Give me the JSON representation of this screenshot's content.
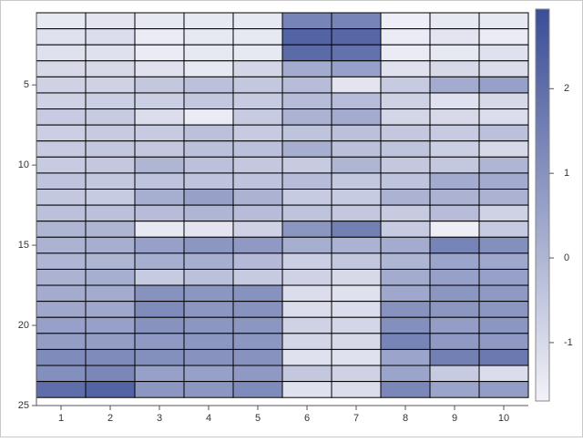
{
  "chart_data": {
    "type": "heatmap",
    "x": [
      1,
      2,
      3,
      4,
      5,
      6,
      7,
      8,
      9,
      10
    ],
    "y": [
      1,
      2,
      3,
      4,
      5,
      6,
      7,
      8,
      9,
      10,
      11,
      12,
      13,
      14,
      15,
      16,
      17,
      18,
      19,
      20,
      21,
      22,
      23,
      24
    ],
    "values": [
      [
        -1.4,
        -1.3,
        -1.4,
        -1.4,
        -1.4,
        1.4,
        1.4,
        -1.6,
        -1.4,
        -1.4
      ],
      [
        -1.2,
        -1.1,
        -1.5,
        -1.4,
        -1.4,
        2.3,
        2.2,
        -1.5,
        -1.3,
        -1.5
      ],
      [
        -1.2,
        -1.2,
        -1.5,
        -1.4,
        -1.4,
        2.1,
        1.9,
        -1.5,
        -1.4,
        -1.2
      ],
      [
        -1.0,
        -1.0,
        -1.2,
        -1.4,
        -0.9,
        0.3,
        0.6,
        -1.2,
        -1.0,
        -1.1
      ],
      [
        -0.8,
        -0.8,
        -0.5,
        -0.3,
        -0.5,
        -0.2,
        -1.3,
        -0.6,
        0.3,
        0.6
      ],
      [
        -0.8,
        -0.7,
        -0.7,
        -0.5,
        -0.6,
        -0.2,
        -0.2,
        -0.8,
        -1.2,
        -1.0
      ],
      [
        -0.6,
        -0.6,
        -1.1,
        -1.5,
        -0.6,
        0.1,
        0.3,
        -0.9,
        -1.0,
        -1.1
      ],
      [
        -0.7,
        -0.6,
        -0.6,
        -0.3,
        -0.6,
        -0.4,
        -0.3,
        -0.5,
        -0.6,
        -0.3
      ],
      [
        -0.6,
        -0.5,
        -0.5,
        -0.3,
        -0.3,
        0.2,
        -0.3,
        -0.4,
        -0.7,
        -1.0
      ],
      [
        -0.6,
        -0.5,
        0.0,
        -0.3,
        -0.5,
        -0.6,
        0.0,
        -0.5,
        -0.5,
        0.0
      ],
      [
        -0.4,
        -0.5,
        -0.4,
        -0.4,
        -0.4,
        -0.2,
        -0.5,
        -0.4,
        0.3,
        0.3
      ],
      [
        -0.5,
        -0.6,
        0.2,
        0.6,
        0.1,
        -0.6,
        -0.6,
        0.1,
        0.1,
        0.1
      ],
      [
        -0.3,
        -0.3,
        -0.2,
        0.0,
        -0.2,
        -0.4,
        -0.5,
        -0.6,
        -0.2,
        -0.8
      ],
      [
        0.0,
        0.0,
        -1.4,
        -1.3,
        -0.8,
        0.9,
        1.5,
        -0.6,
        -1.6,
        -0.6
      ],
      [
        0.1,
        0.2,
        0.6,
        0.9,
        0.8,
        0.2,
        0.1,
        0.3,
        1.4,
        1.1
      ],
      [
        0.0,
        0.0,
        0.2,
        0.2,
        -0.1,
        -0.7,
        -0.5,
        0.0,
        0.5,
        0.4
      ],
      [
        0.1,
        0.2,
        -0.6,
        -0.3,
        -0.6,
        -0.8,
        -1.0,
        0.3,
        0.6,
        0.6
      ],
      [
        0.3,
        0.3,
        1.0,
        0.9,
        1.0,
        -1.1,
        -1.2,
        0.4,
        0.9,
        0.8
      ],
      [
        0.4,
        0.4,
        1.2,
        0.9,
        1.0,
        -1.1,
        -1.1,
        1.0,
        0.9,
        0.9
      ],
      [
        0.6,
        0.6,
        1.0,
        0.9,
        0.9,
        -0.8,
        -0.9,
        1.1,
        0.7,
        0.9
      ],
      [
        0.7,
        0.7,
        0.8,
        0.9,
        0.9,
        -0.9,
        -1.0,
        1.4,
        0.8,
        0.8
      ],
      [
        1.2,
        1.2,
        1.1,
        1.0,
        1.0,
        -1.2,
        -1.2,
        0.5,
        1.5,
        1.7
      ],
      [
        1.1,
        1.3,
        0.6,
        0.6,
        0.8,
        -0.5,
        -0.8,
        0.5,
        -0.6,
        -1.1
      ],
      [
        2.0,
        2.3,
        0.9,
        0.9,
        1.2,
        -1.2,
        -1.1,
        1.3,
        0.5,
        0.7
      ]
    ],
    "xlim": [
      0.5,
      10.5
    ],
    "xticks": [
      1,
      2,
      3,
      4,
      5,
      6,
      7,
      8,
      9,
      10
    ],
    "ylim": [
      0.5,
      25
    ],
    "yticks": [
      5,
      10,
      15,
      20,
      25
    ],
    "y_reversed": true,
    "colorbar_lim": [
      -1.69,
      2.94
    ],
    "colorbar_ticks": [
      -1,
      0,
      1,
      2
    ],
    "colors": [
      "#f2f2f8",
      "#3a4d96"
    ]
  }
}
